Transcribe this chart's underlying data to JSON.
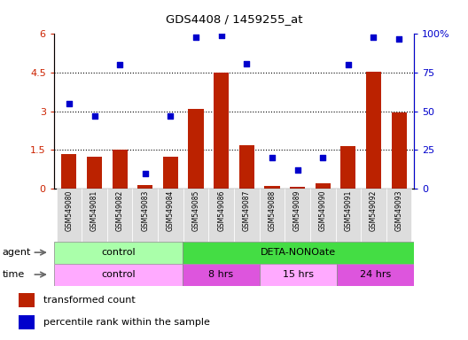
{
  "title": "GDS4408 / 1459255_at",
  "samples": [
    "GSM549080",
    "GSM549081",
    "GSM549082",
    "GSM549083",
    "GSM549084",
    "GSM549085",
    "GSM549086",
    "GSM549087",
    "GSM549088",
    "GSM549089",
    "GSM549090",
    "GSM549091",
    "GSM549092",
    "GSM549093"
  ],
  "transformed_count": [
    1.35,
    1.25,
    1.5,
    0.15,
    1.25,
    3.1,
    4.5,
    1.7,
    0.12,
    0.08,
    0.2,
    1.65,
    4.55,
    2.95
  ],
  "percentile_rank": [
    55,
    47,
    80,
    10,
    47,
    98,
    99,
    81,
    20,
    12,
    20,
    80,
    98,
    97
  ],
  "bar_color": "#bb2200",
  "dot_color": "#0000cc",
  "left_ylim": [
    0,
    6
  ],
  "left_yticks": [
    0,
    1.5,
    3.0,
    4.5,
    6
  ],
  "left_yticklabels": [
    "0",
    "1.5",
    "3",
    "4.5",
    "6"
  ],
  "right_ylim": [
    0,
    100
  ],
  "right_yticks": [
    0,
    25,
    50,
    75,
    100
  ],
  "right_yticklabels": [
    "0",
    "25",
    "50",
    "75",
    "100%"
  ],
  "hlines": [
    1.5,
    3.0,
    4.5
  ],
  "agent_groups": [
    {
      "label": "control",
      "start": 0,
      "end": 4,
      "color": "#aaffaa"
    },
    {
      "label": "DETA-NONOate",
      "start": 5,
      "end": 13,
      "color": "#44dd44"
    }
  ],
  "time_groups": [
    {
      "label": "control",
      "start": 0,
      "end": 4,
      "color": "#ffaaff"
    },
    {
      "label": "8 hrs",
      "start": 5,
      "end": 7,
      "color": "#dd55dd"
    },
    {
      "label": "15 hrs",
      "start": 8,
      "end": 10,
      "color": "#ffaaff"
    },
    {
      "label": "24 hrs",
      "start": 11,
      "end": 13,
      "color": "#dd55dd"
    }
  ],
  "legend_items": [
    {
      "label": "transformed count",
      "color": "#bb2200"
    },
    {
      "label": "percentile rank within the sample",
      "color": "#0000cc"
    }
  ],
  "background_color": "#ffffff",
  "tick_label_color_left": "#cc2200",
  "tick_label_color_right": "#0000cc",
  "label_box_color": "#dddddd"
}
